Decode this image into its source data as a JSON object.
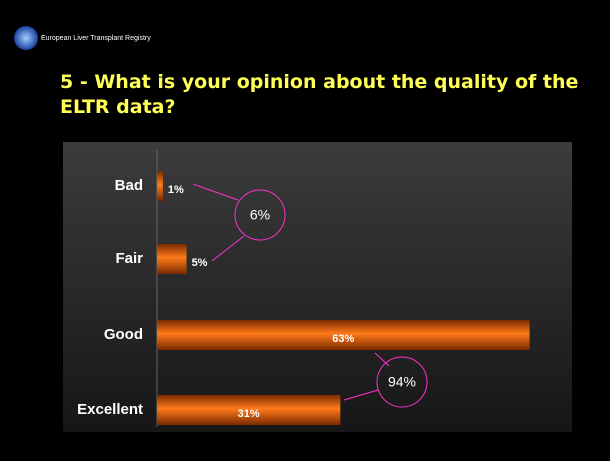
{
  "header": {
    "organization": "European Liver Transplant Registry"
  },
  "chart_data": {
    "type": "hbar",
    "title": "5 - What is your opinion about the quality of the ELTR data?",
    "categories": [
      "Bad",
      "Fair",
      "Good",
      "Excellent"
    ],
    "values": [
      1,
      5,
      63,
      31
    ],
    "value_labels": [
      "1%",
      "5%",
      "63%",
      "31%"
    ],
    "color": "#ff6a00",
    "xlim": [
      0,
      70
    ],
    "annotations": [
      {
        "text": "6%"
      },
      {
        "text": "94%"
      }
    ]
  }
}
